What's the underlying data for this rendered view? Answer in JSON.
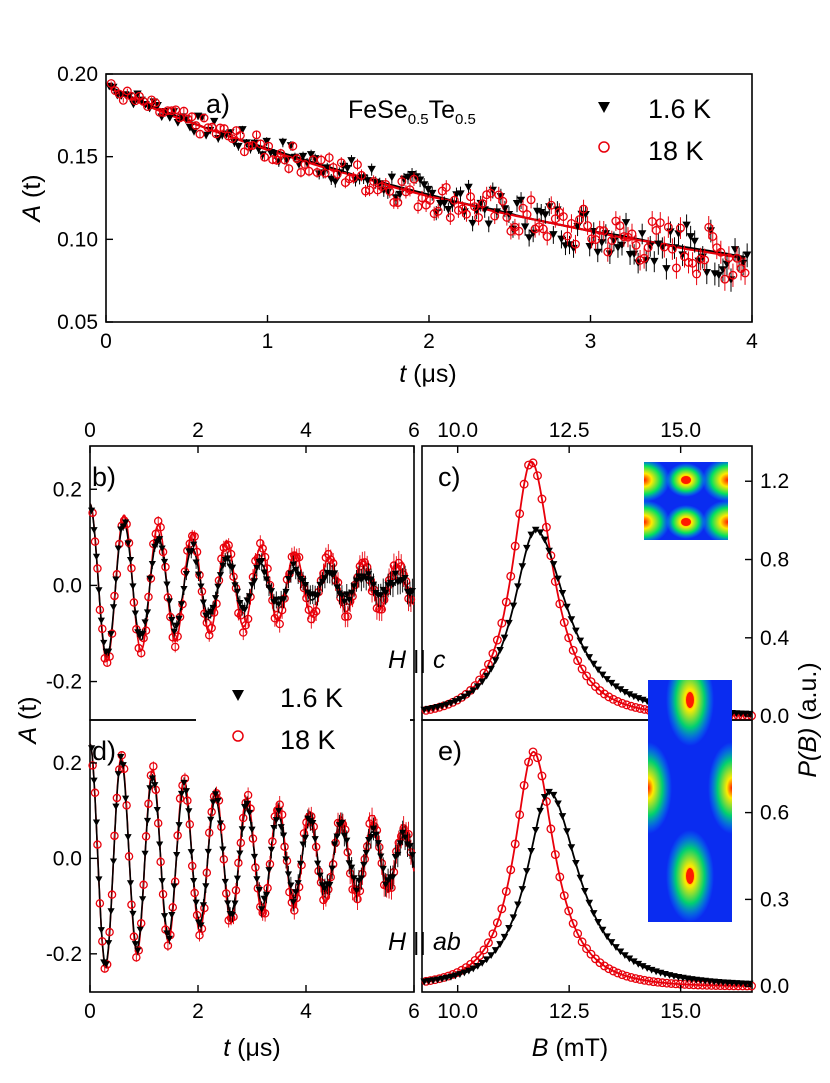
{
  "colors": {
    "black": "#000000",
    "red": "#e8000b"
  },
  "chart_data": [
    {
      "id": "a",
      "type": "scatter",
      "panel_label": "a)",
      "annotation": {
        "base": "FeSe",
        "sub1": "0.5",
        "mid": "Te",
        "sub2": "0.5"
      },
      "xlabel": {
        "italic": "t",
        "rest": " (μs)"
      },
      "ylabel": {
        "italic": "A",
        "rest": " (t)"
      },
      "xlim": [
        0,
        4
      ],
      "ylim": [
        0.05,
        0.2
      ],
      "xticks": [
        "0",
        "1",
        "2",
        "3",
        "4"
      ],
      "yticks": [
        "0.05",
        "0.10",
        "0.15",
        "0.20"
      ],
      "legend": [
        {
          "label": "1.6 K",
          "marker": "down-triangle-filled",
          "color": "#000000"
        },
        {
          "label": "18 K",
          "marker": "open-circle",
          "color": "#e8000b"
        }
      ],
      "legend_position": "top-right",
      "series": [
        {
          "name": "1.6 K",
          "x": [
            0.03,
            0.2,
            0.4,
            0.6,
            0.8,
            1.0,
            1.2,
            1.4,
            1.6,
            1.8,
            2.0,
            2.2,
            2.4,
            2.6,
            2.8,
            3.0,
            3.2,
            3.4,
            3.6,
            3.8,
            3.97
          ],
          "y": [
            0.192,
            0.184,
            0.176,
            0.168,
            0.161,
            0.155,
            0.149,
            0.143,
            0.137,
            0.132,
            0.127,
            0.122,
            0.118,
            0.113,
            0.109,
            0.105,
            0.102,
            0.098,
            0.095,
            0.092,
            0.089
          ]
        },
        {
          "name": "18 K",
          "x": [
            0.03,
            0.2,
            0.4,
            0.6,
            0.8,
            1.0,
            1.2,
            1.4,
            1.6,
            1.8,
            2.0,
            2.2,
            2.4,
            2.6,
            2.8,
            3.0,
            3.2,
            3.4,
            3.6,
            3.8,
            3.97
          ],
          "y": [
            0.191,
            0.183,
            0.175,
            0.168,
            0.161,
            0.154,
            0.148,
            0.142,
            0.137,
            0.131,
            0.126,
            0.122,
            0.117,
            0.113,
            0.109,
            0.105,
            0.101,
            0.098,
            0.094,
            0.091,
            0.088
          ]
        }
      ]
    },
    {
      "id": "b",
      "type": "line",
      "panel_label": "b)",
      "xlim": [
        0,
        6
      ],
      "ylim": [
        -0.28,
        0.29
      ],
      "xticks_top": [
        "0",
        "2",
        "4",
        "6"
      ],
      "yticks": [
        "-0.2",
        "0.0",
        "0.2"
      ],
      "series": [
        {
          "name": "1.6 K",
          "model": {
            "amplitude": 0.17,
            "frequency_MHz": 1.58,
            "decay": 0.42,
            "phase": 0.0
          }
        },
        {
          "name": "18 K",
          "model": {
            "amplitude": 0.17,
            "frequency_MHz": 1.58,
            "decay": 0.24,
            "phase": 0.0
          }
        }
      ]
    },
    {
      "id": "c",
      "type": "line",
      "panel_label": "c)",
      "annotation": {
        "italic1": "H",
        "mid": " || ",
        "italic2": "c"
      },
      "xlim": [
        9.2,
        16.6
      ],
      "ylim": [
        -0.02,
        1.38
      ],
      "xticks_top": [
        "10.0",
        "12.5",
        "15.0"
      ],
      "yticks_right": [
        "0.0",
        "0.4",
        "0.8",
        "1.2"
      ],
      "series": [
        {
          "name": "1.6 K",
          "peak_mT": 11.75,
          "peak_height": 0.95,
          "left_width": 0.65,
          "right_width": 0.9
        },
        {
          "name": "18 K",
          "peak_mT": 11.65,
          "peak_height": 1.3,
          "left_width": 0.55,
          "right_width": 0.62
        }
      ]
    },
    {
      "id": "d",
      "type": "line",
      "panel_label": "d)",
      "xlabel": {
        "italic": "t",
        "rest": " (μs)"
      },
      "xlim": [
        0,
        6
      ],
      "ylim": [
        -0.28,
        0.29
      ],
      "xticks": [
        "0",
        "2",
        "4",
        "6"
      ],
      "yticks": [
        "-0.2",
        "0.0",
        "0.2"
      ],
      "series": [
        {
          "name": "1.6 K",
          "model": {
            "amplitude": 0.24,
            "frequency_MHz": 1.72,
            "decay": 0.28,
            "phase": 0.0
          }
        },
        {
          "name": "18 K",
          "model": {
            "amplitude": 0.24,
            "frequency_MHz": 1.72,
            "decay": 0.22,
            "phase": 0.0
          }
        }
      ]
    },
    {
      "id": "e",
      "type": "line",
      "panel_label": "e)",
      "annotation": {
        "italic1": "H",
        "mid": " || ",
        "italic2": "ab"
      },
      "xlabel": {
        "italic": "B",
        "rest": " (mT)"
      },
      "xlim": [
        9.2,
        16.6
      ],
      "ylim": [
        -0.02,
        0.92
      ],
      "xticks": [
        "10.0",
        "12.5",
        "15.0"
      ],
      "yticks_right": [
        "0.0",
        "0.3",
        "0.6"
      ],
      "series": [
        {
          "name": "1.6 K",
          "peak_mT": 12.05,
          "peak_height": 0.67,
          "left_width": 0.65,
          "right_width": 0.85
        },
        {
          "name": "18 K",
          "peak_mT": 11.7,
          "peak_height": 0.81,
          "left_width": 0.55,
          "right_width": 0.6
        }
      ]
    }
  ],
  "shared": {
    "ylabel_bd": {
      "italic": "A",
      "rest": " (t)"
    },
    "ylabel_ce": {
      "italic": "P(B)",
      "rest": " (a.u.)"
    },
    "legend_bd": [
      {
        "label": "1.6 K",
        "marker": "down-triangle-filled",
        "color": "#000000"
      },
      {
        "label": "18 K",
        "marker": "open-circle",
        "color": "#e8000b"
      }
    ]
  }
}
